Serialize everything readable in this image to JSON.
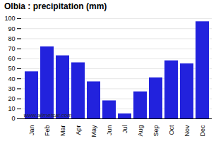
{
  "chart_data": {
    "type": "bar",
    "title": "Olbia : precipitation (mm)",
    "categories": [
      "Jan",
      "Feb",
      "Mar",
      "Apr",
      "May",
      "Jun",
      "Jul",
      "Aug",
      "Sep",
      "Oct",
      "Nov",
      "Dec"
    ],
    "values": [
      47,
      72,
      63,
      56,
      37,
      18,
      5,
      27,
      41,
      58,
      55,
      97
    ],
    "color": "#2222dd",
    "ylim": [
      0,
      100
    ],
    "yticks": [
      0,
      10,
      20,
      30,
      40,
      50,
      60,
      70,
      80,
      90,
      100
    ],
    "grid": true,
    "annotation": "www.allmetsat.com"
  }
}
